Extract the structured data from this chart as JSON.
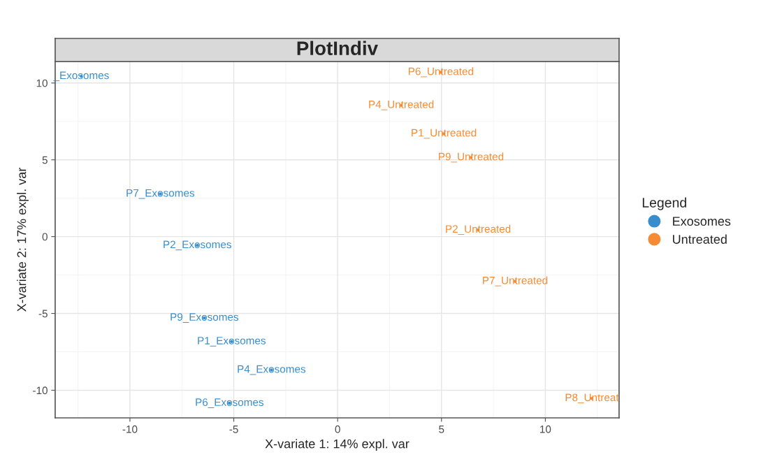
{
  "chart_data": {
    "type": "scatter",
    "title": "PlotIndiv",
    "xlabel": "X-variate 1: 14% expl. var",
    "ylabel": "X-variate 2: 17% expl. var",
    "legend_title": "Legend",
    "legend": "right",
    "grid": true,
    "marker": "circle",
    "xlim": [
      -13.6,
      13.55
    ],
    "ylim": [
      -11.8,
      11.4
    ],
    "xticks": [
      -10,
      -5,
      0,
      5,
      10
    ],
    "yticks": [
      -10,
      -5,
      0,
      5,
      10
    ],
    "series": [
      {
        "name": "Exosomes",
        "color": "#388ecc",
        "x": [
          -12.34,
          -8.54,
          -6.76,
          -6.42,
          -5.11,
          -3.19,
          -5.21
        ],
        "values": [
          10.44,
          2.78,
          -0.57,
          -5.29,
          -6.83,
          -8.68,
          -10.84
        ]
      },
      {
        "name": "Untreated",
        "color": "#f68b33",
        "x": [
          4.97,
          3.06,
          5.11,
          6.42,
          6.76,
          8.54,
          12.24
        ],
        "values": [
          10.7,
          8.55,
          6.7,
          5.15,
          0.44,
          -2.91,
          -10.53
        ]
      }
    ],
    "annotations": [
      {
        "text": "_Exosomes",
        "x": -12.34,
        "y": 10.44
      },
      {
        "text": "P7_Exosomes",
        "x": -8.54,
        "y": 2.78
      },
      {
        "text": "P2_Exosomes",
        "x": -6.76,
        "y": -0.57
      },
      {
        "text": "P9_Exosomes",
        "x": -6.42,
        "y": -5.29
      },
      {
        "text": "P1_Exosomes",
        "x": -5.11,
        "y": -6.83
      },
      {
        "text": "P4_Exosomes",
        "x": -3.19,
        "y": -8.68
      },
      {
        "text": "P6_Exosomes",
        "x": -5.21,
        "y": -10.84
      },
      {
        "text": "P6_Untreated",
        "x": 4.97,
        "y": 10.7
      },
      {
        "text": "P4_Untreated",
        "x": 3.06,
        "y": 8.55
      },
      {
        "text": "P1_Untreated",
        "x": 5.11,
        "y": 6.7
      },
      {
        "text": "P9_Untreated",
        "x": 6.42,
        "y": 5.15
      },
      {
        "text": "P2_Untreated",
        "x": 6.76,
        "y": 0.44
      },
      {
        "text": "P7_Untreated",
        "x": 8.54,
        "y": -2.91
      },
      {
        "text": "P8_Untreat",
        "x": 12.24,
        "y": -10.53
      }
    ]
  }
}
